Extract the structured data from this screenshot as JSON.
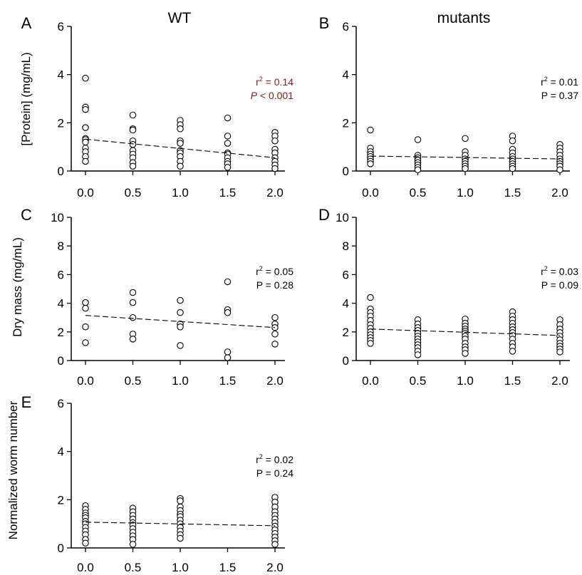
{
  "column_titles": {
    "left": "WT",
    "right": "mutants"
  },
  "colors": {
    "axis": "#000000",
    "text": "#000000",
    "significant": "#8b1a1a",
    "marker_fill": "#ffffff"
  },
  "chart_data": [
    {
      "id": "A",
      "type": "scatter",
      "panel_label": "A",
      "ylabel": "[Protein] (mg/mL)",
      "ylim": [
        0,
        6
      ],
      "yticks": [
        "0",
        "2",
        "4",
        "6"
      ],
      "xlim": [
        0,
        2
      ],
      "xticks": [
        "0.0",
        "0.5",
        "1.0",
        "1.5",
        "2.0"
      ],
      "stats": {
        "r_symbol": "r",
        "r_sup": "2",
        "r_rest": " = 0.14",
        "p_symbol": "P",
        "p_rest": " < 0.001",
        "color": "#8b1a1a",
        "p_italic": true
      },
      "trend": {
        "x": [
          0,
          2
        ],
        "y": [
          1.32,
          0.55
        ]
      },
      "points": [
        [
          0,
          3.85
        ],
        [
          0,
          2.65
        ],
        [
          0,
          2.55
        ],
        [
          0,
          1.8
        ],
        [
          0,
          1.35
        ],
        [
          0,
          1.3
        ],
        [
          0,
          1.2
        ],
        [
          0,
          0.95
        ],
        [
          0,
          0.8
        ],
        [
          0,
          0.6
        ],
        [
          0,
          0.4
        ],
        [
          0.5,
          2.32
        ],
        [
          0.5,
          1.75
        ],
        [
          0.5,
          1.7
        ],
        [
          0.5,
          1.25
        ],
        [
          0.5,
          1.1
        ],
        [
          0.5,
          0.85
        ],
        [
          0.5,
          0.7
        ],
        [
          0.5,
          0.55
        ],
        [
          0.5,
          0.35
        ],
        [
          0.5,
          0.2
        ],
        [
          1,
          2.1
        ],
        [
          1,
          1.92
        ],
        [
          1,
          1.75
        ],
        [
          1,
          1.25
        ],
        [
          1,
          1.15
        ],
        [
          1,
          0.85
        ],
        [
          1,
          0.75
        ],
        [
          1,
          0.6
        ],
        [
          1,
          0.4
        ],
        [
          1,
          0.2
        ],
        [
          1.5,
          2.2
        ],
        [
          1.5,
          1.45
        ],
        [
          1.5,
          1.15
        ],
        [
          1.5,
          0.75
        ],
        [
          1.5,
          0.7
        ],
        [
          1.5,
          0.55
        ],
        [
          1.5,
          0.4
        ],
        [
          1.5,
          0.3
        ],
        [
          1.5,
          0.15
        ],
        [
          2,
          1.6
        ],
        [
          2,
          1.45
        ],
        [
          2,
          1.25
        ],
        [
          2,
          0.9
        ],
        [
          2,
          0.75
        ],
        [
          2,
          0.55
        ],
        [
          2,
          0.4
        ],
        [
          2,
          0.25
        ],
        [
          2,
          0.1
        ]
      ]
    },
    {
      "id": "B",
      "type": "scatter",
      "panel_label": "B",
      "ylabel": "",
      "ylim": [
        0,
        6
      ],
      "yticks": [
        "0",
        "2",
        "4",
        "6"
      ],
      "xlim": [
        0,
        2
      ],
      "xticks": [
        "0.0",
        "0.5",
        "1.0",
        "1.5",
        "2.0"
      ],
      "stats": {
        "r_symbol": "r",
        "r_sup": "2",
        "r_rest": " = 0.01",
        "p_symbol": "P",
        "p_rest": " = 0.37",
        "color": "#000000",
        "p_italic": false
      },
      "trend": {
        "x": [
          0,
          2
        ],
        "y": [
          0.62,
          0.5
        ]
      },
      "points": [
        [
          0,
          1.7
        ],
        [
          0,
          0.95
        ],
        [
          0,
          0.8
        ],
        [
          0,
          0.7
        ],
        [
          0,
          0.6
        ],
        [
          0,
          0.5
        ],
        [
          0,
          0.4
        ],
        [
          0,
          0.3
        ],
        [
          0.5,
          1.3
        ],
        [
          0.5,
          0.65
        ],
        [
          0.5,
          0.55
        ],
        [
          0.5,
          0.45
        ],
        [
          0.5,
          0.35
        ],
        [
          0.5,
          0.25
        ],
        [
          0.5,
          0.15
        ],
        [
          0.5,
          0.05
        ],
        [
          1,
          1.35
        ],
        [
          1,
          0.8
        ],
        [
          1,
          0.65
        ],
        [
          1,
          0.5
        ],
        [
          1,
          0.4
        ],
        [
          1,
          0.3
        ],
        [
          1,
          0.2
        ],
        [
          1,
          0.1
        ],
        [
          1.5,
          1.45
        ],
        [
          1.5,
          1.25
        ],
        [
          1.5,
          0.9
        ],
        [
          1.5,
          0.75
        ],
        [
          1.5,
          0.6
        ],
        [
          1.5,
          0.5
        ],
        [
          1.5,
          0.4
        ],
        [
          1.5,
          0.3
        ],
        [
          1.5,
          0.2
        ],
        [
          1.5,
          0.1
        ],
        [
          2,
          1.1
        ],
        [
          2,
          0.95
        ],
        [
          2,
          0.8
        ],
        [
          2,
          0.65
        ],
        [
          2,
          0.5
        ],
        [
          2,
          0.4
        ],
        [
          2,
          0.3
        ],
        [
          2,
          0.2
        ],
        [
          2,
          0.05
        ]
      ]
    },
    {
      "id": "C",
      "type": "scatter",
      "panel_label": "C",
      "ylabel": "Dry mass (mg/mL)",
      "ylim": [
        0,
        10
      ],
      "yticks": [
        "0",
        "2",
        "4",
        "6",
        "8",
        "10"
      ],
      "xlim": [
        0,
        2
      ],
      "xticks": [
        "0.0",
        "0.5",
        "1.0",
        "1.5",
        "2.0"
      ],
      "stats": {
        "r_symbol": "r",
        "r_sup": "2",
        "r_rest": " = 0.05",
        "p_symbol": "P",
        "p_rest": " = 0.28",
        "color": "#000000",
        "p_italic": false
      },
      "trend": {
        "x": [
          0,
          2
        ],
        "y": [
          3.15,
          2.3
        ]
      },
      "points": [
        [
          0,
          4.05
        ],
        [
          0,
          3.65
        ],
        [
          0,
          2.35
        ],
        [
          0,
          1.25
        ],
        [
          0.5,
          4.75
        ],
        [
          0.5,
          4.05
        ],
        [
          0.5,
          3.0
        ],
        [
          0.5,
          1.85
        ],
        [
          0.5,
          1.5
        ],
        [
          1,
          4.2
        ],
        [
          1,
          3.35
        ],
        [
          1,
          2.55
        ],
        [
          1,
          2.35
        ],
        [
          1,
          1.05
        ],
        [
          1.5,
          5.5
        ],
        [
          1.5,
          3.55
        ],
        [
          1.5,
          3.35
        ],
        [
          1.5,
          0.6
        ],
        [
          1.5,
          0.2
        ],
        [
          2,
          3.0
        ],
        [
          2,
          2.55
        ],
        [
          2,
          2.3
        ],
        [
          2,
          1.85
        ],
        [
          2,
          1.15
        ]
      ]
    },
    {
      "id": "D",
      "type": "scatter",
      "panel_label": "D",
      "ylabel": "",
      "ylim": [
        0,
        10
      ],
      "yticks": [
        "0",
        "2",
        "4",
        "6",
        "8",
        "10"
      ],
      "xlim": [
        0,
        2
      ],
      "xticks": [
        "0.0",
        "0.5",
        "1.0",
        "1.5",
        "2.0"
      ],
      "stats": {
        "r_symbol": "r",
        "r_sup": "2",
        "r_rest": " = 0.03",
        "p_symbol": "P",
        "p_rest": " = 0.09",
        "color": "#000000",
        "p_italic": false
      },
      "trend": {
        "x": [
          0,
          2
        ],
        "y": [
          2.2,
          1.75
        ]
      },
      "points": [
        [
          0,
          4.4
        ],
        [
          0,
          3.6
        ],
        [
          0,
          3.35
        ],
        [
          0,
          3.1
        ],
        [
          0,
          2.8
        ],
        [
          0,
          2.5
        ],
        [
          0,
          2.25
        ],
        [
          0,
          2.0
        ],
        [
          0,
          1.8
        ],
        [
          0,
          1.6
        ],
        [
          0,
          1.4
        ],
        [
          0,
          1.2
        ],
        [
          0.5,
          2.85
        ],
        [
          0.5,
          2.55
        ],
        [
          0.5,
          2.3
        ],
        [
          0.5,
          2.1
        ],
        [
          0.5,
          1.9
        ],
        [
          0.5,
          1.7
        ],
        [
          0.5,
          1.5
        ],
        [
          0.5,
          1.3
        ],
        [
          0.5,
          1.1
        ],
        [
          0.5,
          0.9
        ],
        [
          0.5,
          0.65
        ],
        [
          0.5,
          0.4
        ],
        [
          1,
          2.9
        ],
        [
          1,
          2.6
        ],
        [
          1,
          2.4
        ],
        [
          1,
          2.2
        ],
        [
          1,
          2.05
        ],
        [
          1,
          1.9
        ],
        [
          1,
          1.7
        ],
        [
          1,
          1.5
        ],
        [
          1,
          1.2
        ],
        [
          1,
          0.95
        ],
        [
          1,
          0.75
        ],
        [
          1,
          0.5
        ],
        [
          1.5,
          3.4
        ],
        [
          1.5,
          3.1
        ],
        [
          1.5,
          2.85
        ],
        [
          1.5,
          2.6
        ],
        [
          1.5,
          2.35
        ],
        [
          1.5,
          2.15
        ],
        [
          1.5,
          1.95
        ],
        [
          1.5,
          1.75
        ],
        [
          1.5,
          1.5
        ],
        [
          1.5,
          1.2
        ],
        [
          1.5,
          0.95
        ],
        [
          1.5,
          0.65
        ],
        [
          2,
          2.85
        ],
        [
          2,
          2.5
        ],
        [
          2,
          2.2
        ],
        [
          2,
          1.95
        ],
        [
          2,
          1.7
        ],
        [
          2,
          1.45
        ],
        [
          2,
          1.2
        ],
        [
          2,
          1.0
        ],
        [
          2,
          0.8
        ],
        [
          2,
          0.6
        ]
      ]
    },
    {
      "id": "E",
      "type": "scatter",
      "panel_label": "E",
      "ylabel": "Normalized worm number",
      "ylim": [
        0,
        6
      ],
      "yticks": [
        "0",
        "2",
        "4",
        "6"
      ],
      "xlim": [
        0,
        2
      ],
      "xticks": [
        "0.0",
        "0.5",
        "1.0",
        "1.5",
        "2.0"
      ],
      "stats": {
        "r_symbol": "r",
        "r_sup": "2",
        "r_rest": " = 0.02",
        "p_symbol": "P",
        "p_rest": " = 0.24",
        "color": "#000000",
        "p_italic": false
      },
      "trend": {
        "x": [
          0,
          2
        ],
        "y": [
          1.07,
          0.92
        ]
      },
      "points": [
        [
          0,
          1.75
        ],
        [
          0,
          1.6
        ],
        [
          0,
          1.45
        ],
        [
          0,
          1.35
        ],
        [
          0,
          1.25
        ],
        [
          0,
          1.1
        ],
        [
          0,
          1.0
        ],
        [
          0,
          0.85
        ],
        [
          0,
          0.7
        ],
        [
          0,
          0.55
        ],
        [
          0,
          0.35
        ],
        [
          0,
          0.2
        ],
        [
          0.5,
          1.65
        ],
        [
          0.5,
          1.5
        ],
        [
          0.5,
          1.35
        ],
        [
          0.5,
          1.2
        ],
        [
          0.5,
          1.05
        ],
        [
          0.5,
          0.95
        ],
        [
          0.5,
          0.8
        ],
        [
          0.5,
          0.65
        ],
        [
          0.5,
          0.5
        ],
        [
          0.5,
          0.35
        ],
        [
          0.5,
          0.15
        ],
        [
          1,
          2.05
        ],
        [
          1,
          1.95
        ],
        [
          1,
          1.7
        ],
        [
          1,
          1.55
        ],
        [
          1,
          1.4
        ],
        [
          1,
          1.3
        ],
        [
          1,
          1.15
        ],
        [
          1,
          1.0
        ],
        [
          1,
          0.85
        ],
        [
          1,
          0.7
        ],
        [
          1,
          0.55
        ],
        [
          1,
          0.4
        ],
        [
          2,
          2.1
        ],
        [
          2,
          1.9
        ],
        [
          2,
          1.7
        ],
        [
          2,
          1.5
        ],
        [
          2,
          1.35
        ],
        [
          2,
          1.2
        ],
        [
          2,
          1.05
        ],
        [
          2,
          0.9
        ],
        [
          2,
          0.75
        ],
        [
          2,
          0.6
        ],
        [
          2,
          0.45
        ],
        [
          2,
          0.3
        ],
        [
          2,
          0.15
        ]
      ]
    }
  ]
}
